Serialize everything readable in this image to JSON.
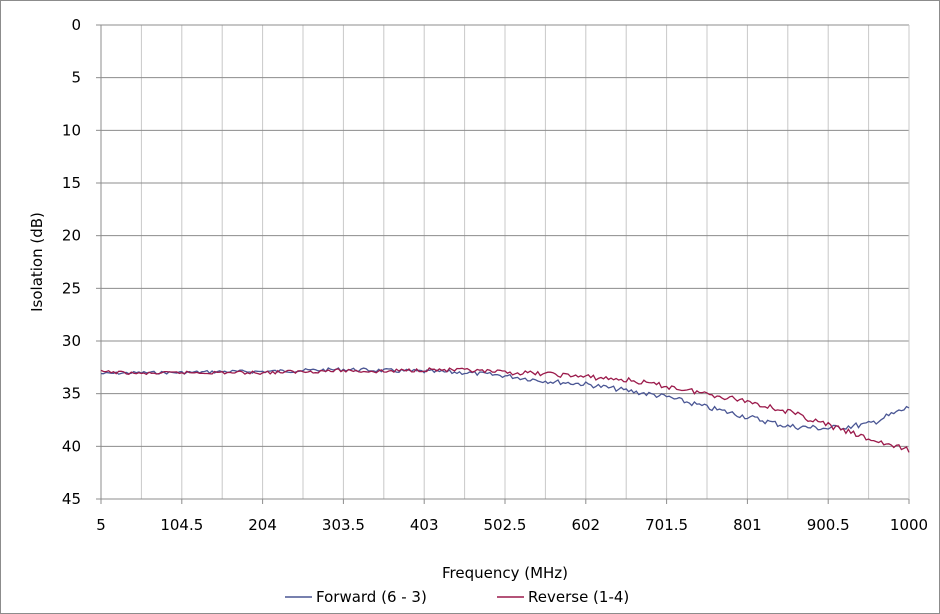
{
  "chart_data": {
    "type": "line",
    "title": "",
    "xlabel": "Frequency (MHz)",
    "ylabel": "Isolation (dB)",
    "x_ticks": [
      "5",
      "104.5",
      "204",
      "303.5",
      "403",
      "502.5",
      "602",
      "701.5",
      "801",
      "900.5",
      "1000"
    ],
    "xlim": [
      5,
      1000
    ],
    "y_ticks": [
      "0",
      "5",
      "10",
      "15",
      "20",
      "25",
      "30",
      "35",
      "40",
      "45"
    ],
    "ylim": [
      0,
      45
    ],
    "y_inverted": true,
    "grid": true,
    "legend_position": "bottom",
    "x": [
      5,
      54.75,
      104.5,
      154.25,
      204,
      253.75,
      303.5,
      353.25,
      403,
      452.75,
      502.5,
      552.25,
      602,
      651.75,
      701.5,
      751.25,
      801,
      850.75,
      900.5,
      950.25,
      1000
    ],
    "series": [
      {
        "name": "Forward (6 - 3)",
        "color": "#4a5694",
        "values": [
          33.1,
          33.0,
          33.0,
          32.9,
          32.9,
          32.8,
          32.7,
          32.8,
          32.9,
          33.0,
          33.3,
          33.8,
          34.1,
          34.7,
          35.3,
          36.3,
          37.2,
          38.1,
          38.3,
          37.9,
          36.3
        ]
      },
      {
        "name": "Reverse (1-4)",
        "color": "#9b1a4b",
        "values": [
          32.9,
          33.1,
          33.0,
          33.0,
          33.0,
          32.9,
          32.8,
          32.9,
          32.7,
          32.8,
          33.0,
          33.1,
          33.4,
          33.7,
          34.3,
          35.0,
          35.7,
          36.7,
          38.0,
          39.3,
          40.4
        ]
      }
    ]
  }
}
